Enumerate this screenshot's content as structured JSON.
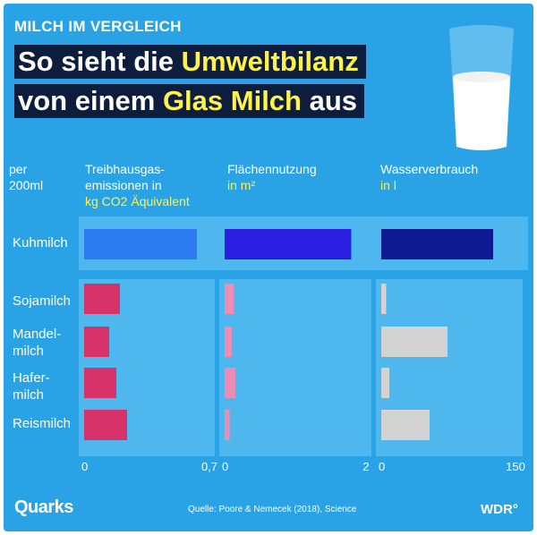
{
  "kicker": "MILCH IM VERGLEICH",
  "headline": {
    "line1_a": "So sieht die ",
    "line1_b": "Umweltbilanz",
    "line2_a": "von einem ",
    "line2_b": "Glas Milch",
    "line2_c": " aus"
  },
  "per_label": {
    "l1": "per",
    "l2": "200ml"
  },
  "columns": [
    {
      "head1": "Treibhausgas-",
      "head2": "emissionen in",
      "unit": "kg CO2 Äquivalent"
    },
    {
      "head1": "Flächennutzung",
      "head2": "in m²",
      "unit": ""
    },
    {
      "head1": "Wasserverbrauch",
      "head2": "in l",
      "unit": ""
    }
  ],
  "rows": [
    {
      "l1": "Kuhmilch",
      "l2": ""
    },
    {
      "l1": "Sojamilch",
      "l2": ""
    },
    {
      "l1": "Mandel-",
      "l2": "milch"
    },
    {
      "l1": "Hafer-",
      "l2": "milch"
    },
    {
      "l1": "Reismilch",
      "l2": ""
    }
  ],
  "footer": {
    "logo": "Quarks",
    "source": "Quelle: Poore & Nemecek (2018), Science",
    "wdr": "WDR°"
  },
  "colors": {
    "background": "#2aa3e6",
    "panel": "#59bdf0",
    "headline_box": "#0c1d3e",
    "highlight_text": "#fff34a",
    "cow_emissions": "#2c7bf0",
    "cow_land": "#2a1ee0",
    "cow_water": "#0f1a92",
    "plant_emissions": "#d7336a",
    "plant_land": "#f08cb4",
    "plant_water": "#d3d3d3"
  },
  "chart_data": {
    "type": "bar",
    "orientation": "horizontal",
    "categories": [
      "Kuhmilch",
      "Sojamilch",
      "Mandelmilch",
      "Hafermilch",
      "Reismilch"
    ],
    "panels": [
      {
        "metric": "Treibhausgasemissionen",
        "unit": "kg CO2 Äquivalent",
        "xlim": [
          0,
          0.7
        ],
        "tick_labels": [
          "0",
          "0,7"
        ],
        "values": [
          0.63,
          0.2,
          0.14,
          0.18,
          0.24
        ]
      },
      {
        "metric": "Flächennutzung",
        "unit": "m²",
        "xlim": [
          0,
          2
        ],
        "tick_labels": [
          "0",
          "2"
        ],
        "values": [
          1.79,
          0.13,
          0.1,
          0.15,
          0.07
        ]
      },
      {
        "metric": "Wasserverbrauch",
        "unit": "l",
        "xlim": [
          0,
          150
        ],
        "tick_labels": [
          "0",
          "150"
        ],
        "values": [
          125,
          5.5,
          74,
          9,
          54
        ]
      }
    ]
  }
}
